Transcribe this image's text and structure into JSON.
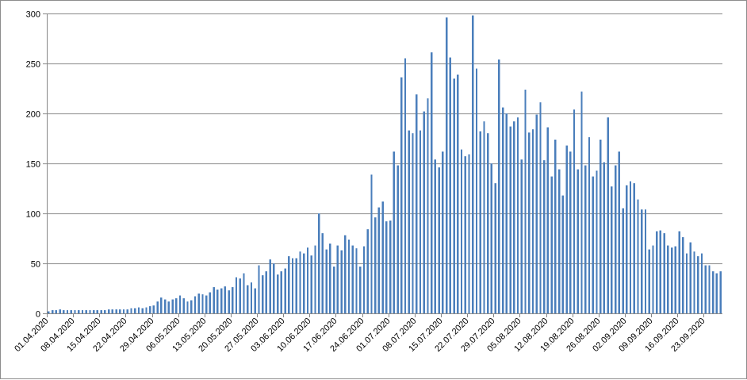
{
  "chart_data": {
    "type": "bar",
    "title": "",
    "xlabel": "",
    "ylabel": "",
    "ylim": [
      0,
      300
    ],
    "yticks": [
      "0",
      "50",
      "100",
      "150",
      "200",
      "250",
      "300"
    ],
    "grid": true,
    "legend": "none",
    "bar_color": "#4a7ebb",
    "grid_color": "#868686",
    "xtick_labels": [
      "01.04.2020",
      "08.04.2020",
      "15.04.2020",
      "22.04.2020",
      "29.04.2020",
      "06.05.2020",
      "13.05.2020",
      "20.05.2020",
      "27.05.2020",
      "03.06.2020",
      "10.06.2020",
      "17.06.2020",
      "24.06.2020",
      "01.07.2020",
      "08.07.2020",
      "15.07.2020",
      "22.07.2020",
      "29.07.2020",
      "05.08.2020",
      "12.08.2020",
      "19.08.2020",
      "26.08.2020",
      "02.09.2020",
      "09.09.2020",
      "16.09.2020",
      "23.09.2020"
    ],
    "x_start": "01.04.2020",
    "x_end": "26.09.2020",
    "values": [
      2,
      3,
      3,
      4,
      3,
      3,
      3,
      3,
      3,
      3,
      3,
      3,
      3,
      3,
      3,
      3,
      4,
      4,
      4,
      4,
      4,
      4,
      5,
      5,
      6,
      5,
      6,
      7,
      8,
      12,
      16,
      14,
      12,
      14,
      15,
      18,
      15,
      12,
      13,
      17,
      20,
      19,
      18,
      21,
      26,
      24,
      25,
      27,
      23,
      26,
      36,
      35,
      40,
      28,
      31,
      25,
      48,
      38,
      42,
      54,
      50,
      39,
      42,
      45,
      57,
      55,
      55,
      62,
      60,
      66,
      58,
      68,
      100,
      80,
      64,
      70,
      47,
      68,
      63,
      78,
      74,
      68,
      65,
      47,
      67,
      84,
      139,
      96,
      106,
      112,
      92,
      93,
      162,
      148,
      236,
      255,
      183,
      180,
      219,
      183,
      202,
      215,
      261,
      154,
      146,
      162,
      296,
      256,
      235,
      239,
      164,
      157,
      159,
      298,
      245,
      182,
      192,
      180,
      150,
      130,
      254,
      206,
      200,
      187,
      192,
      196,
      154,
      224,
      181,
      184,
      199,
      211,
      153,
      186,
      137,
      174,
      144,
      118,
      168,
      162,
      204,
      144,
      222,
      148,
      176,
      137,
      143,
      174,
      151,
      196,
      127,
      148,
      162,
      105,
      128,
      132,
      130,
      114,
      104,
      104,
      64,
      68,
      82,
      83,
      80,
      68,
      66,
      67,
      82,
      76,
      60,
      71,
      62,
      57,
      60,
      48,
      48,
      42,
      40,
      42
    ]
  }
}
